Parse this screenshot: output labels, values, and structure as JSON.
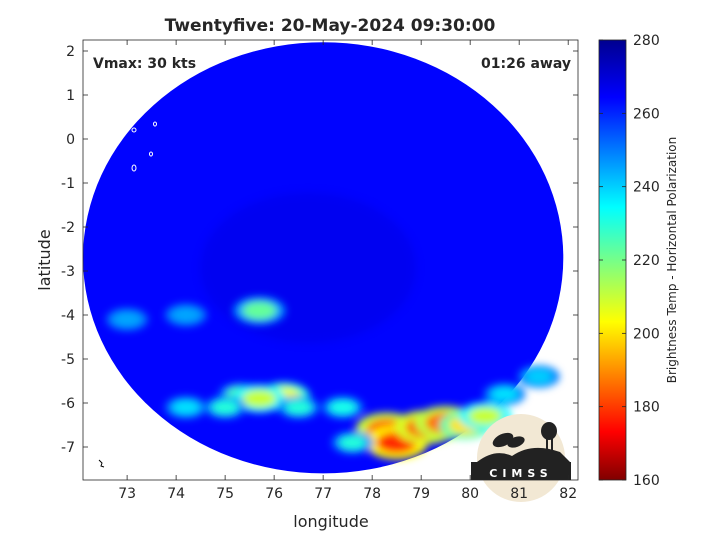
{
  "chart_data": {
    "type": "heatmap",
    "title": "Twentyfive: 20-May-2024 09:30:00",
    "xlabel": "longitude",
    "ylabel": "latitude",
    "xlim": [
      72.1,
      82.2
    ],
    "ylim": [
      -7.75,
      2.25
    ],
    "xticks": [
      "73",
      "74",
      "75",
      "76",
      "77",
      "78",
      "79",
      "80",
      "81",
      "82"
    ],
    "yticks": [
      "2",
      "1",
      "0",
      "-1",
      "-2",
      "-3",
      "-4",
      "-5",
      "-6",
      "-7"
    ],
    "annotation_left": "Vmax: 30 kts",
    "annotation_right": "01:26 away",
    "colorbar": {
      "label": "Brightness Temp - Horizontal Polarization",
      "ticks": [
        "280",
        "260",
        "240",
        "220",
        "200",
        "180",
        "160"
      ],
      "range": [
        160,
        280
      ],
      "colormap": "jet"
    },
    "swath_center": [
      77.0,
      -2.7
    ],
    "swath_radius_deg": 4.9,
    "background_temp": 264,
    "warm_center_temp": 268,
    "features": [
      {
        "lon": 75.7,
        "lat": -3.9,
        "temp": 222
      },
      {
        "lon": 75.3,
        "lat": -5.8,
        "temp": 225
      },
      {
        "lon": 76.2,
        "lat": -5.85,
        "temp": 205
      },
      {
        "lon": 75.7,
        "lat": -5.9,
        "temp": 210
      },
      {
        "lon": 75.0,
        "lat": -6.1,
        "temp": 230
      },
      {
        "lon": 74.2,
        "lat": -6.1,
        "temp": 238
      },
      {
        "lon": 76.5,
        "lat": -6.1,
        "temp": 230
      },
      {
        "lon": 77.4,
        "lat": -6.1,
        "temp": 232
      },
      {
        "lon": 78.3,
        "lat": -6.6,
        "temp": 185
      },
      {
        "lon": 78.5,
        "lat": -6.9,
        "temp": 178
      },
      {
        "lon": 79.1,
        "lat": -6.55,
        "temp": 183
      },
      {
        "lon": 79.5,
        "lat": -6.45,
        "temp": 186
      },
      {
        "lon": 79.9,
        "lat": -6.5,
        "temp": 200
      },
      {
        "lon": 80.3,
        "lat": -6.3,
        "temp": 210
      },
      {
        "lon": 77.6,
        "lat": -6.9,
        "temp": 230
      },
      {
        "lon": 80.7,
        "lat": -5.8,
        "temp": 238
      },
      {
        "lon": 81.4,
        "lat": -5.4,
        "temp": 240
      },
      {
        "lon": 73.0,
        "lat": -4.1,
        "temp": 245
      },
      {
        "lon": 74.2,
        "lat": -4.0,
        "temp": 245
      }
    ]
  },
  "logo_text": "CIMSS"
}
